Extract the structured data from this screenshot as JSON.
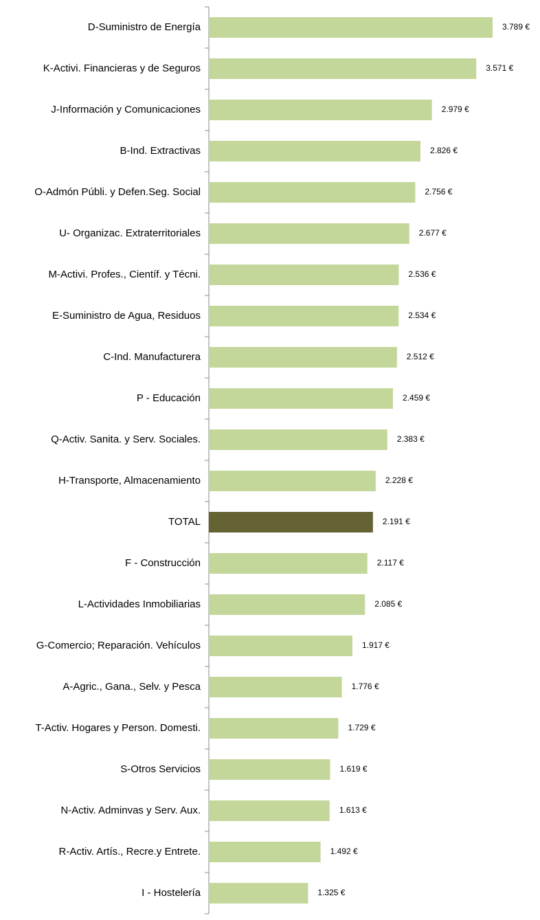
{
  "chart_data": {
    "type": "hbar",
    "categories": [
      "D-Suministro de Energía",
      "K-Activi. Financieras y de Seguros",
      "J-Información y Comunicaciones",
      "B-Ind. Extractivas",
      "O-Admón Públi. y Defen.Seg. Social",
      "U- Organizac. Extraterritoriales",
      "M-Activi. Profes., Científ. y Técni.",
      "E-Suministro de Agua, Residuos",
      "C-Ind. Manufacturera",
      "P - Educación",
      "Q-Activ. Sanita. y Serv. Sociales.",
      "H-Transporte, Almacenamiento",
      "TOTAL",
      "F - Construcción",
      "L-Actividades Inmobiliarias",
      "G-Comercio; Reparación. Vehículos",
      "A-Agric., Gana., Selv. y Pesca",
      "T-Activ. Hogares y Person. Domesti.",
      "S-Otros Servicios",
      "N-Activ. Adminvas y Serv. Aux.",
      "R-Activ. Artís., Recre.y Entrete.",
      "I - Hostelería"
    ],
    "values": [
      3789,
      3571,
      2979,
      2826,
      2756,
      2677,
      2536,
      2534,
      2512,
      2459,
      2383,
      2228,
      2191,
      2117,
      2085,
      1917,
      1776,
      1729,
      1619,
      1613,
      1492,
      1325
    ],
    "value_labels": [
      "3.789 €",
      "3.571 €",
      "2.979 €",
      "2.826 €",
      "2.756 €",
      "2.677 €",
      "2.536 €",
      "2.534 €",
      "2.512 €",
      "2.459 €",
      "2.383 €",
      "2.228 €",
      "2.191 €",
      "2.117 €",
      "2.085 €",
      "1.917 €",
      "1.776 €",
      "1.729 €",
      "1.619 €",
      "1.613 €",
      "1.492 €",
      "1.325 €"
    ],
    "colors": [
      "#c4d79b",
      "#c4d79b",
      "#c4d79b",
      "#c4d79b",
      "#c4d79b",
      "#c4d79b",
      "#c4d79b",
      "#c4d79b",
      "#c4d79b",
      "#c4d79b",
      "#c4d79b",
      "#c4d79b",
      "#656333",
      "#c4d79b",
      "#c4d79b",
      "#c4d79b",
      "#c4d79b",
      "#c4d79b",
      "#c4d79b",
      "#c4d79b",
      "#c4d79b",
      "#c4d79b"
    ],
    "xlim": [
      0,
      4000
    ]
  }
}
